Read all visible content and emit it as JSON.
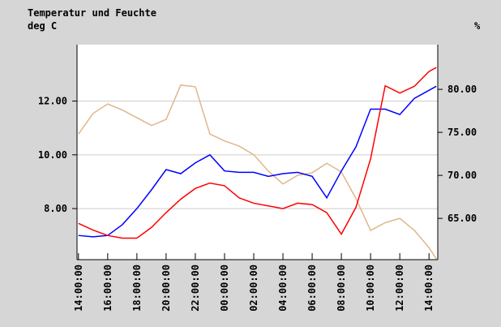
{
  "chart_data": {
    "type": "line",
    "title": "Temperatur und Feuchte",
    "ylabel": "deg C",
    "y2label": "%",
    "x": [
      0,
      1,
      2,
      3,
      4,
      5,
      6,
      7,
      8,
      9,
      10,
      11,
      12,
      13,
      14,
      15,
      16,
      17,
      18,
      19,
      20,
      21,
      22,
      23,
      24,
      24.5
    ],
    "xlim": [
      -0.1,
      24.6
    ],
    "xticks": [
      {
        "value": 0,
        "label": "14:00:00"
      },
      {
        "value": 2,
        "label": "16:00:00"
      },
      {
        "value": 4,
        "label": "18:00:00"
      },
      {
        "value": 6,
        "label": "20:00:00"
      },
      {
        "value": 8,
        "label": "22:00:00"
      },
      {
        "value": 10,
        "label": "00:00:00"
      },
      {
        "value": 12,
        "label": "02:00:00"
      },
      {
        "value": 14,
        "label": "04:00:00"
      },
      {
        "value": 16,
        "label": "06:00:00"
      },
      {
        "value": 18,
        "label": "08:00:00"
      },
      {
        "value": 20,
        "label": "10:00:00"
      },
      {
        "value": 22,
        "label": "12:00:00"
      },
      {
        "value": 24,
        "label": "14:00:00"
      }
    ],
    "ylim": [
      6.1,
      14.1
    ],
    "yticks": [
      {
        "value": 8,
        "label": "8.00"
      },
      {
        "value": 10,
        "label": "10.00"
      },
      {
        "value": 12,
        "label": "12.00"
      }
    ],
    "y2lim": [
      60.2,
      85.2
    ],
    "y2ticks": [
      {
        "value": 65,
        "label": "65.00"
      },
      {
        "value": 70,
        "label": "70.00"
      },
      {
        "value": 75,
        "label": "75.00"
      },
      {
        "value": 80,
        "label": "80.00"
      }
    ],
    "grid": true,
    "series": [
      {
        "color": "#e0b68c",
        "axis": "y2",
        "values": [
          74.8,
          77.2,
          78.3,
          77.6,
          76.7,
          75.8,
          76.5,
          80.5,
          80.3,
          74.8,
          74.0,
          73.4,
          72.4,
          70.5,
          69.0,
          70.0,
          70.3,
          71.4,
          70.4,
          67.3,
          63.6,
          64.5,
          65.0,
          63.6,
          61.6,
          60.3
        ]
      },
      {
        "color": "#0000ff",
        "values": [
          7.0,
          6.95,
          7.0,
          7.4,
          8.0,
          8.7,
          9.45,
          9.3,
          9.7,
          10.0,
          9.4,
          9.35,
          9.35,
          9.2,
          9.3,
          9.35,
          9.2,
          8.4,
          9.4,
          10.3,
          11.7,
          11.7,
          11.5,
          12.1,
          12.4,
          12.55
        ]
      },
      {
        "color": "#ff0000",
        "values": [
          7.45,
          7.2,
          7.0,
          6.9,
          6.9,
          7.3,
          7.85,
          8.35,
          8.75,
          8.95,
          8.85,
          8.4,
          8.2,
          8.1,
          8.0,
          8.2,
          8.15,
          7.85,
          7.05,
          8.05,
          9.85,
          12.57,
          12.3,
          12.55,
          13.1,
          13.25
        ]
      }
    ]
  }
}
